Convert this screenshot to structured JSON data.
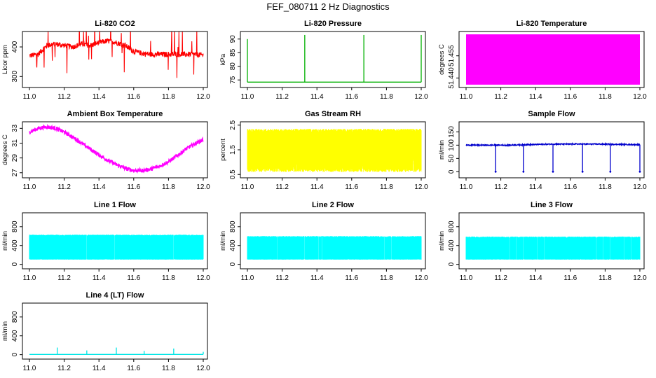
{
  "figure": {
    "title": "FEF_080711  2 Hz Diagnostics"
  },
  "chart_data": [
    {
      "id": "co2",
      "type": "line",
      "title": "Li-820 CO2",
      "ylabel": "Licor ppm",
      "color": "#ff0000",
      "xlim": [
        11.0,
        12.0
      ],
      "ylim": [
        270,
        445
      ],
      "xticks": [
        "11.0",
        "11.2",
        "11.4",
        "11.6",
        "11.8",
        "12.0"
      ],
      "yticks": [
        "300",
        "400"
      ],
      "x": [
        11.0,
        11.05,
        11.1,
        11.15,
        11.2,
        11.25,
        11.3,
        11.35,
        11.4,
        11.45,
        11.5,
        11.55,
        11.6,
        11.65,
        11.7,
        11.75,
        11.8,
        11.85,
        11.9,
        11.95,
        12.0
      ],
      "y": [
        370,
        375,
        405,
        410,
        405,
        400,
        410,
        405,
        415,
        420,
        415,
        405,
        385,
        378,
        375,
        375,
        375,
        375,
        375,
        375,
        372
      ],
      "style": "noisy-spiky"
    },
    {
      "id": "pressure",
      "type": "line",
      "title": "Li-820 Pressure",
      "ylabel": "kPa",
      "color": "#00b000",
      "xlim": [
        11.0,
        12.0
      ],
      "ylim": [
        73,
        92
      ],
      "xticks": [
        "11.0",
        "11.2",
        "11.4",
        "11.6",
        "11.8",
        "12.0"
      ],
      "yticks": [
        "75",
        "80",
        "85",
        "90"
      ],
      "x": [
        11.0,
        12.0
      ],
      "y": [
        74.2,
        74.2
      ],
      "spikes": [
        {
          "x": 11.0,
          "y": 90
        },
        {
          "x": 11.33,
          "y": 91.5
        },
        {
          "x": 11.67,
          "y": 91.5
        },
        {
          "x": 12.0,
          "y": 91.5
        }
      ],
      "style": "baseline-spikes"
    },
    {
      "id": "licor-temp",
      "type": "area",
      "title": "Li-820 Temperature",
      "ylabel": "degrees C",
      "color": "#ff00ff",
      "xlim": [
        11.0,
        12.0
      ],
      "ylim": [
        51.435,
        51.47
      ],
      "xticks": [
        "11.0",
        "11.2",
        "11.4",
        "11.6",
        "11.8",
        "12.0"
      ],
      "yticks": [
        "51.440",
        "51.455"
      ],
      "x": [
        11.0,
        12.0
      ],
      "y_range": [
        51.4355,
        51.4695
      ],
      "style": "band"
    },
    {
      "id": "box-temp",
      "type": "line",
      "title": "Ambient Box Temperature",
      "ylabel": "degrees C",
      "color": "#ff00ff",
      "xlim": [
        11.0,
        12.0
      ],
      "ylim": [
        26.6,
        33.6
      ],
      "xticks": [
        "11.0",
        "11.2",
        "11.4",
        "11.6",
        "11.8",
        "12.0"
      ],
      "yticks": [
        "27",
        "29",
        "31",
        "33"
      ],
      "x": [
        11.0,
        11.05,
        11.1,
        11.15,
        11.2,
        11.25,
        11.3,
        11.35,
        11.4,
        11.45,
        11.5,
        11.55,
        11.6,
        11.65,
        11.7,
        11.75,
        11.8,
        11.85,
        11.9,
        11.95,
        12.0
      ],
      "y": [
        32.5,
        33.0,
        33.2,
        33.0,
        32.5,
        31.8,
        31.0,
        30.2,
        29.4,
        28.7,
        28.1,
        27.6,
        27.3,
        27.3,
        27.5,
        27.9,
        28.5,
        29.3,
        30.2,
        30.9,
        31.5
      ],
      "style": "noisy"
    },
    {
      "id": "gas-rh",
      "type": "area",
      "title": "Gas Stream RH",
      "ylabel": "percent",
      "color": "#ffff00",
      "xlim": [
        11.0,
        12.0
      ],
      "ylim": [
        0.45,
        2.55
      ],
      "xticks": [
        "11.0",
        "11.2",
        "11.4",
        "11.6",
        "11.8",
        "12.0"
      ],
      "yticks": [
        "0.5",
        "1.5",
        "2.5"
      ],
      "x": [
        11.0,
        12.0
      ],
      "y_range": [
        0.6,
        2.35
      ],
      "style": "dense-noise"
    },
    {
      "id": "sample-flow",
      "type": "line",
      "title": "Sample Flow",
      "ylabel": "ml/min",
      "color": "#0000cc",
      "xlim": [
        11.0,
        12.0
      ],
      "ylim": [
        -15,
        180
      ],
      "xticks": [
        "11.0",
        "11.2",
        "11.4",
        "11.6",
        "11.8",
        "12.0"
      ],
      "yticks": [
        "0",
        "50",
        "100",
        "150"
      ],
      "x": [
        11.0,
        11.25,
        11.5,
        11.75,
        12.0
      ],
      "y": [
        100,
        100,
        104,
        104,
        102
      ],
      "dips": [
        11.17,
        11.33,
        11.5,
        11.67,
        11.83,
        12.0
      ],
      "style": "baseline-dips"
    },
    {
      "id": "line1-flow",
      "type": "area",
      "title": "Line 1 Flow",
      "ylabel": "ml/min",
      "color": "#00ffff",
      "xlim": [
        11.0,
        12.0
      ],
      "ylim": [
        -50,
        1050
      ],
      "xticks": [
        "11.0",
        "11.2",
        "11.4",
        "11.6",
        "11.8",
        "12.0"
      ],
      "yticks": [
        "0",
        "400",
        "800"
      ],
      "x": [
        11.0,
        12.0
      ],
      "y_range": [
        100,
        630
      ],
      "gaps": [
        11.16,
        11.33,
        11.49,
        11.66,
        11.83
      ],
      "style": "band-gaps"
    },
    {
      "id": "line2-flow",
      "type": "area",
      "title": "Line 2 Flow",
      "ylabel": "ml/min",
      "color": "#00ffff",
      "xlim": [
        11.0,
        12.0
      ],
      "ylim": [
        -50,
        1050
      ],
      "xticks": [
        "11.0",
        "11.2",
        "11.4",
        "11.6",
        "11.8",
        "12.0"
      ],
      "yticks": [
        "0",
        "400",
        "800"
      ],
      "x": [
        11.0,
        12.0
      ],
      "y_range": [
        100,
        600
      ],
      "gaps": [
        11.16,
        11.17,
        11.33,
        11.41,
        11.43,
        11.5,
        11.58,
        11.66,
        11.74,
        11.76,
        11.79,
        11.83,
        11.92
      ],
      "style": "band-gaps"
    },
    {
      "id": "line3-flow",
      "type": "area",
      "title": "Line 3 Flow",
      "ylabel": "ml/min",
      "color": "#00ffff",
      "xlim": [
        11.0,
        12.0
      ],
      "ylim": [
        -50,
        1050
      ],
      "xticks": [
        "11.0",
        "11.2",
        "11.4",
        "11.6",
        "11.8",
        "12.0"
      ],
      "yticks": [
        "0",
        "400",
        "800"
      ],
      "x": [
        11.0,
        12.0
      ],
      "y_range": [
        100,
        590
      ],
      "gaps": [
        11.08,
        11.12,
        11.16,
        11.25,
        11.29,
        11.33,
        11.41,
        11.45,
        11.5,
        11.58,
        11.62,
        11.66,
        11.75,
        11.79,
        11.83,
        11.91,
        11.95
      ],
      "style": "band-gaps"
    },
    {
      "id": "line4-flow",
      "type": "line",
      "title": "Line 4 (LT) Flow",
      "ylabel": "ml/min",
      "color": "#00e5e5",
      "xlim": [
        11.0,
        12.0
      ],
      "ylim": [
        -50,
        1050
      ],
      "xticks": [
        "11.0",
        "11.2",
        "11.4",
        "11.6",
        "11.8",
        "12.0"
      ],
      "yticks": [
        "0",
        "400",
        "800"
      ],
      "x": [
        11.0,
        12.0
      ],
      "y": [
        5,
        5
      ],
      "spikes": [
        {
          "x": 11.16,
          "y": 150
        },
        {
          "x": 11.33,
          "y": 90
        },
        {
          "x": 11.5,
          "y": 150
        },
        {
          "x": 11.66,
          "y": 80
        },
        {
          "x": 11.83,
          "y": 130
        },
        {
          "x": 12.0,
          "y": 60
        }
      ],
      "style": "baseline-spikes"
    }
  ]
}
